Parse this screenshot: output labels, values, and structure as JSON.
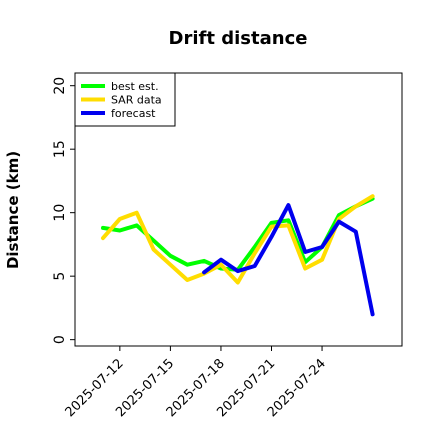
{
  "chart_data": {
    "type": "line",
    "title": "Drift distance",
    "xlabel": "",
    "ylabel": "Distance (km)",
    "ylim": [
      -0.5,
      21
    ],
    "yticks": [
      0,
      5,
      10,
      15,
      20
    ],
    "x": [
      "2025-07-11",
      "2025-07-12",
      "2025-07-13",
      "2025-07-14",
      "2025-07-15",
      "2025-07-16",
      "2025-07-17",
      "2025-07-18",
      "2025-07-19",
      "2025-07-20",
      "2025-07-21",
      "2025-07-22",
      "2025-07-23",
      "2025-07-24",
      "2025-07-25",
      "2025-07-26",
      "2025-07-27"
    ],
    "xticks": [
      "2025-07-12",
      "2025-07-15",
      "2025-07-18",
      "2025-07-21",
      "2025-07-24"
    ],
    "grid": false,
    "legend_position": "top-left",
    "series": [
      {
        "name": "best est.",
        "color": "#00ff00",
        "x": [
          "2025-07-11",
          "2025-07-12",
          "2025-07-13",
          "2025-07-14",
          "2025-07-15",
          "2025-07-16",
          "2025-07-17",
          "2025-07-18",
          "2025-07-19",
          "2025-07-20",
          "2025-07-21",
          "2025-07-22",
          "2025-07-23",
          "2025-07-24",
          "2025-07-25",
          "2025-07-26",
          "2025-07-27"
        ],
        "values": [
          8.8,
          8.6,
          9.0,
          7.8,
          6.6,
          5.9,
          6.2,
          5.6,
          5.5,
          7.3,
          9.2,
          9.4,
          6.1,
          7.3,
          9.8,
          10.5,
          11.1
        ]
      },
      {
        "name": "SAR data",
        "color": "#ffdd00",
        "x": [
          "2025-07-11",
          "2025-07-12",
          "2025-07-13",
          "2025-07-14",
          "2025-07-15",
          "2025-07-16",
          "2025-07-17",
          "2025-07-18",
          "2025-07-19",
          "2025-07-20",
          "2025-07-21",
          "2025-07-22",
          "2025-07-23",
          "2025-07-24",
          "2025-07-25",
          "2025-07-26",
          "2025-07-27"
        ],
        "values": [
          8.0,
          9.5,
          10.0,
          7.1,
          5.9,
          4.7,
          5.2,
          5.9,
          4.5,
          6.8,
          8.9,
          9.0,
          5.6,
          6.3,
          9.5,
          10.5,
          11.3
        ]
      },
      {
        "name": "forecast",
        "color": "#0000ee",
        "x": [
          "2025-07-17",
          "2025-07-18",
          "2025-07-19",
          "2025-07-20",
          "2025-07-21",
          "2025-07-22",
          "2025-07-23",
          "2025-07-24",
          "2025-07-25",
          "2025-07-26",
          "2025-07-27"
        ],
        "values": [
          5.3,
          6.3,
          5.4,
          5.8,
          8.1,
          10.6,
          6.9,
          7.3,
          9.3,
          8.5,
          2.0
        ]
      }
    ]
  }
}
